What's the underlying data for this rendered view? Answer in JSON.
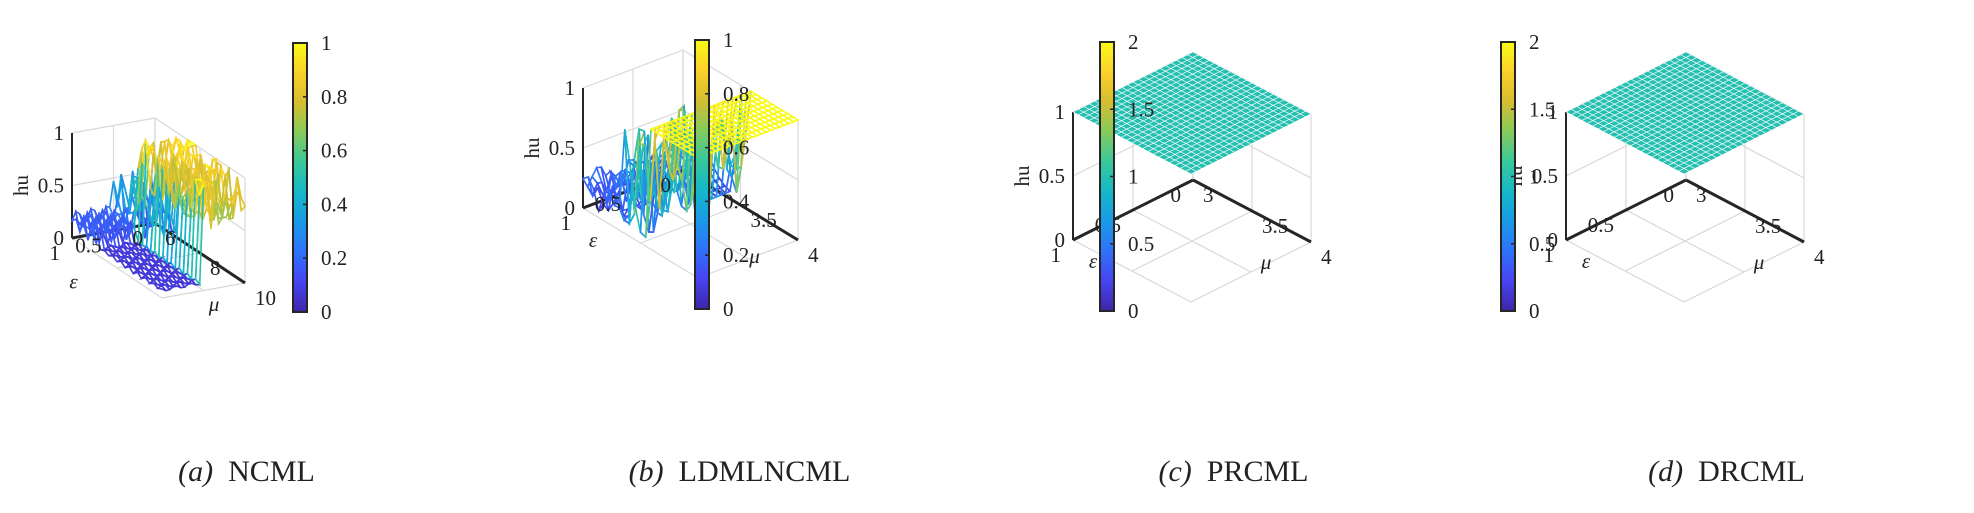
{
  "colormap": [
    "#3e26a8",
    "#4743f0",
    "#2f72fb",
    "#1a9ae6",
    "#14b8c8",
    "#38c89a",
    "#86cb5b",
    "#d6bd30",
    "#fbd12a",
    "#f9fb15"
  ],
  "chart_data": [
    {
      "id": "a",
      "type": "surface",
      "caption_label": "(a)",
      "caption_title": "NCML",
      "zlabel": "hu",
      "xlabel": "ε",
      "ylabel": "μ",
      "eps_ticks": [
        "1",
        "0.5",
        "0"
      ],
      "mu_ticks": [
        "6",
        "8",
        "10"
      ],
      "z_ticks": [
        "0",
        "0.5",
        "1"
      ],
      "xlim": [
        0,
        1
      ],
      "ylim": [
        6,
        10
      ],
      "zlim": [
        0,
        1
      ],
      "colorbar_ticks": [
        "0",
        "0.2",
        "0.4",
        "0.6",
        "0.8",
        "1"
      ],
      "colorbar_range": [
        0,
        1
      ],
      "pattern": "chaotic"
    },
    {
      "id": "b",
      "type": "surface",
      "caption_label": "(b)",
      "caption_title": "LDMLNCML",
      "zlabel": "hu",
      "xlabel": "ε",
      "ylabel": "μ",
      "eps_ticks": [
        "1",
        "0.5",
        "0"
      ],
      "mu_ticks": [
        "3",
        "3.5",
        "4"
      ],
      "z_ticks": [
        "0",
        "0.5",
        "1"
      ],
      "xlim": [
        0,
        1
      ],
      "ylim": [
        3,
        4
      ],
      "zlim": [
        0,
        1
      ],
      "colorbar_ticks": [
        "0",
        "0.2",
        "0.4",
        "0.6",
        "0.8",
        "1"
      ],
      "colorbar_range": [
        0,
        1
      ],
      "pattern": "step"
    },
    {
      "id": "c",
      "type": "surface",
      "caption_label": "(c)",
      "caption_title": "PRCML",
      "zlabel": "hu",
      "xlabel": "ε",
      "ylabel": "μ",
      "eps_ticks": [
        "1",
        "0.5",
        "0"
      ],
      "mu_ticks": [
        "3",
        "3.5",
        "4"
      ],
      "z_ticks": [
        "0",
        "0.5",
        "1"
      ],
      "xlim": [
        0,
        1
      ],
      "ylim": [
        3,
        4
      ],
      "zlim": [
        0,
        1
      ],
      "colorbar_ticks": [
        "0",
        "0.5",
        "1",
        "1.5",
        "2"
      ],
      "colorbar_range": [
        0,
        2
      ],
      "pattern": "flat",
      "flat_value": 1
    },
    {
      "id": "d",
      "type": "surface",
      "caption_label": "(d)",
      "caption_title": "DRCML",
      "zlabel": "hu",
      "xlabel": "ε",
      "ylabel": "μ",
      "eps_ticks": [
        "1",
        "0.5",
        "0"
      ],
      "mu_ticks": [
        "3",
        "3.5",
        "4"
      ],
      "z_ticks": [
        "0",
        "0.5",
        "1"
      ],
      "xlim": [
        0,
        1
      ],
      "ylim": [
        3,
        4
      ],
      "zlim": [
        0,
        1
      ],
      "colorbar_ticks": [
        "0",
        "0.5",
        "1",
        "1.5",
        "2"
      ],
      "colorbar_range": [
        0,
        2
      ],
      "pattern": "flat",
      "flat_value": 1
    }
  ]
}
